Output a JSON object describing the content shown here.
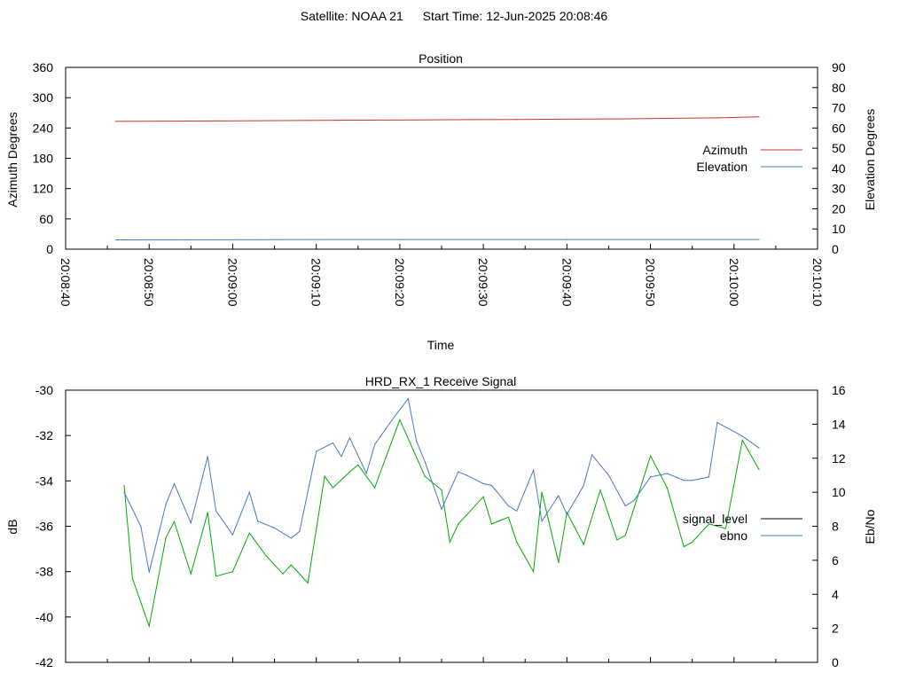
{
  "header": {
    "satellite": "Satellite: NOAA 21",
    "start_time": "Start Time: 12-Jun-2025 20:08:46"
  },
  "chart_data": [
    {
      "type": "line",
      "title": "Position",
      "xlabel": "Time",
      "ylabel": "Azimuth Degrees",
      "y2label": "Elevation Degrees",
      "xlim": [
        "20:08:40",
        "20:10:10"
      ],
      "x_ticks": [
        "20:08:40",
        "20:08:50",
        "20:09:00",
        "20:09:10",
        "20:09:20",
        "20:09:30",
        "20:09:40",
        "20:09:50",
        "20:10:00",
        "20:10:10"
      ],
      "ylim": [
        0,
        360
      ],
      "y_ticks": [
        "0",
        "60",
        "120",
        "180",
        "240",
        "300",
        "360"
      ],
      "y2lim": [
        0,
        90
      ],
      "y2_ticks": [
        "0",
        "10",
        "20",
        "30",
        "40",
        "50",
        "60",
        "70",
        "80",
        "90"
      ],
      "legend_position": "right",
      "grid": false,
      "series": [
        {
          "name": "Azimuth",
          "axis": "left",
          "color": "#c0392b",
          "x": [
            "20:08:46",
            "20:08:58",
            "20:09:10",
            "20:09:22",
            "20:09:34",
            "20:09:46",
            "20:09:58",
            "20:10:03"
          ],
          "values": [
            253,
            254,
            255,
            256,
            257,
            258,
            260,
            262
          ]
        },
        {
          "name": "Elevation",
          "axis": "right",
          "color": "#4a78c2",
          "x": [
            "20:08:46",
            "20:09:03",
            "20:09:20",
            "20:09:40",
            "20:10:03"
          ],
          "values": [
            4.6,
            4.7,
            4.8,
            4.8,
            4.8
          ]
        }
      ]
    },
    {
      "type": "line",
      "title": "HRD_RX_1 Receive Signal",
      "ylabel": "dB",
      "y2label": "Eb/No",
      "ylim": [
        -42,
        -30
      ],
      "y_ticks": [
        "-42",
        "-40",
        "-38",
        "-36",
        "-34",
        "-32",
        "-30"
      ],
      "y2lim": [
        0,
        16
      ],
      "y2_ticks": [
        "0",
        "2",
        "4",
        "6",
        "8",
        "10",
        "12",
        "14",
        "16"
      ],
      "xlim": [
        "20:08:40",
        "20:10:10"
      ],
      "legend_position": "right",
      "grid": false,
      "series": [
        {
          "name": "signal_level",
          "axis": "left",
          "color": "#00aa00",
          "legend_color": "#000000",
          "x": [
            "20:08:47",
            "20:08:48",
            "20:08:50",
            "20:08:52",
            "20:08:53",
            "20:08:55",
            "20:08:57",
            "20:08:58",
            "20:09:00",
            "20:09:02",
            "20:09:04",
            "20:09:06",
            "20:09:07",
            "20:09:09",
            "20:09:11",
            "20:09:12",
            "20:09:14",
            "20:09:15",
            "20:09:17",
            "20:09:20",
            "20:09:23",
            "20:09:25",
            "20:09:26",
            "20:09:27",
            "20:09:28",
            "20:09:30",
            "20:09:31",
            "20:09:33",
            "20:09:34",
            "20:09:36",
            "20:09:37",
            "20:09:39",
            "20:09:40",
            "20:09:42",
            "20:09:44",
            "20:09:46",
            "20:09:47",
            "20:09:50",
            "20:09:52",
            "20:09:54",
            "20:09:55",
            "20:09:57",
            "20:09:59",
            "20:10:01",
            "20:10:03"
          ],
          "values": [
            -34.2,
            -38.3,
            -40.4,
            -36.5,
            -35.8,
            -38.1,
            -35.4,
            -38.2,
            -38.0,
            -36.3,
            -37.3,
            -38.1,
            -37.7,
            -38.5,
            -33.8,
            -34.3,
            -33.6,
            -33.3,
            -34.3,
            -31.3,
            -33.8,
            -34.4,
            -36.7,
            -35.9,
            -35.5,
            -34.7,
            -35.9,
            -35.6,
            -36.7,
            -38.0,
            -34.5,
            -37.6,
            -35.4,
            -36.8,
            -34.4,
            -36.6,
            -36.4,
            -32.9,
            -34.3,
            -36.9,
            -36.7,
            -35.9,
            -36.1,
            -32.2,
            -33.5
          ]
        },
        {
          "name": "ebno",
          "axis": "right",
          "color": "#4a78c2",
          "x": [
            "20:08:47",
            "20:08:49",
            "20:08:50",
            "20:08:52",
            "20:08:53",
            "20:08:55",
            "20:08:57",
            "20:08:58",
            "20:09:00",
            "20:09:02",
            "20:09:03",
            "20:09:05",
            "20:09:07",
            "20:09:08",
            "20:09:10",
            "20:09:12",
            "20:09:13",
            "20:09:14",
            "20:09:16",
            "20:09:17",
            "20:09:19",
            "20:09:21",
            "20:09:22",
            "20:09:23",
            "20:09:25",
            "20:09:27",
            "20:09:28",
            "20:09:30",
            "20:09:31",
            "20:09:33",
            "20:09:34",
            "20:09:36",
            "20:09:37",
            "20:09:39",
            "20:09:40",
            "20:09:42",
            "20:09:43",
            "20:09:45",
            "20:09:47",
            "20:09:48",
            "20:09:50",
            "20:09:52",
            "20:09:54",
            "20:09:55",
            "20:09:57",
            "20:09:58",
            "20:10:01",
            "20:10:03"
          ],
          "values": [
            10.0,
            8.0,
            5.3,
            9.3,
            10.5,
            8.2,
            12.1,
            8.9,
            7.5,
            10.0,
            8.3,
            7.9,
            7.3,
            7.7,
            12.4,
            12.9,
            12.1,
            13.2,
            11.1,
            12.8,
            14.2,
            15.5,
            13.0,
            11.8,
            9.0,
            11.2,
            11.0,
            10.5,
            10.4,
            9.2,
            8.9,
            11.3,
            8.3,
            9.8,
            8.7,
            10.4,
            12.2,
            11.0,
            9.2,
            9.5,
            10.9,
            11.1,
            10.7,
            10.7,
            10.9,
            14.1,
            13.3,
            12.6
          ]
        }
      ]
    }
  ]
}
